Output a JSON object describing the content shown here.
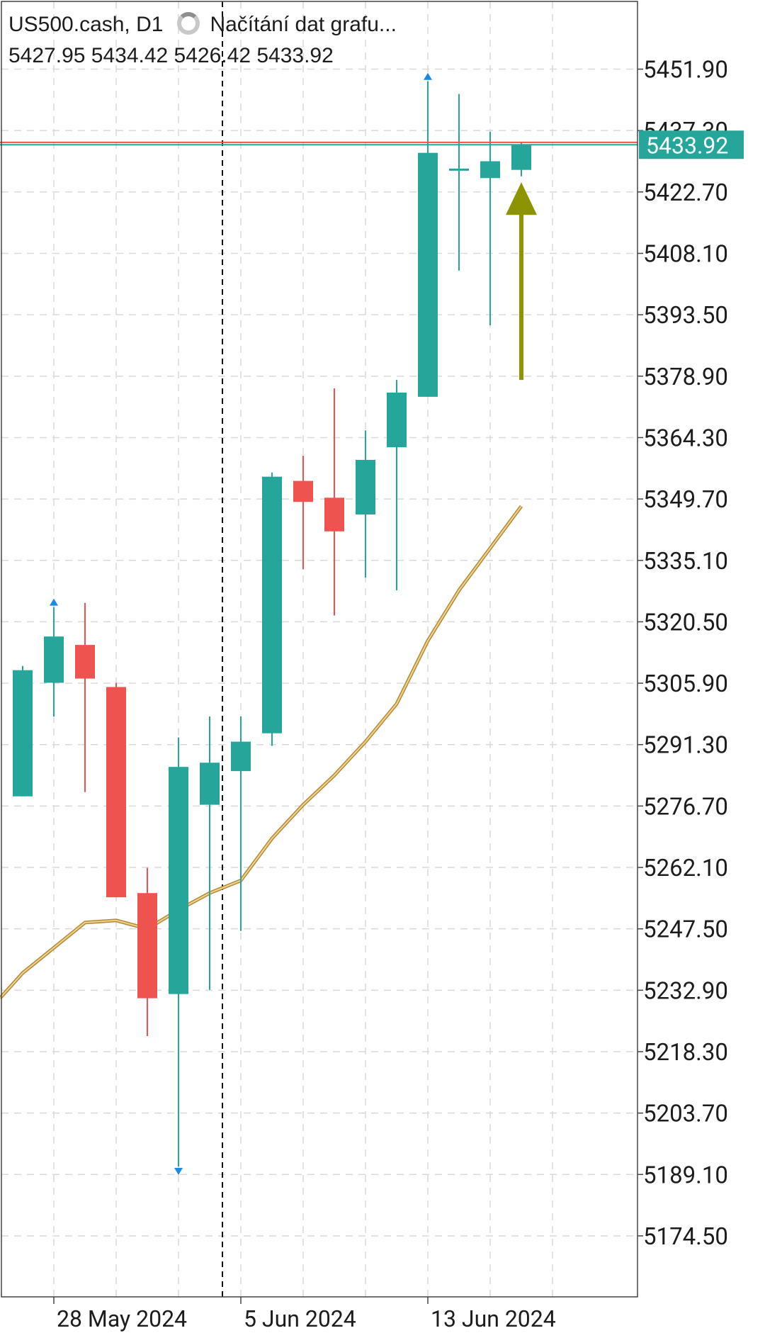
{
  "header": {
    "symbol": "US500.cash, D1",
    "loading_text": "Načítání dat grafu...",
    "ohlc": "5427.95 5434.42 5426.42 5433.92"
  },
  "current_price": "5433.92",
  "colors": {
    "bull": "#26a69a",
    "bear": "#ef5350",
    "ma": "#d4a84b",
    "arrow": "#8c9400",
    "bid_line": "#ef5350",
    "ask_line": "#26a69a",
    "grid": "#d9d9d9",
    "marker": "#1e88e5"
  },
  "chart_data": {
    "type": "candlestick",
    "symbol": "US500.cash",
    "timeframe": "D1",
    "y_axis": {
      "ticks": [
        "5451.90",
        "5437.30",
        "5422.70",
        "5408.10",
        "5393.50",
        "5378.90",
        "5364.30",
        "5349.70",
        "5335.10",
        "5320.50",
        "5305.90",
        "5291.30",
        "5276.70",
        "5262.10",
        "5247.50",
        "5232.90",
        "5218.30",
        "5203.70",
        "5189.10",
        "5174.50"
      ],
      "range": [
        5160,
        5468
      ]
    },
    "x_axis": {
      "labels": [
        {
          "text": "28 May 2024",
          "index": 1
        },
        {
          "text": "5 Jun 2024",
          "index": 7
        },
        {
          "text": "13 Jun 2024",
          "index": 13
        }
      ],
      "category_count": 18
    },
    "candles": [
      {
        "i": 0,
        "open": 5279,
        "high": 5310,
        "low": 5279,
        "close": 5309
      },
      {
        "i": 1,
        "open": 5306,
        "high": 5324,
        "low": 5298,
        "close": 5317
      },
      {
        "i": 2,
        "open": 5315,
        "high": 5325,
        "low": 5280,
        "close": 5307
      },
      {
        "i": 3,
        "open": 5305,
        "high": 5306,
        "low": 5255,
        "close": 5255
      },
      {
        "i": 4,
        "open": 5256,
        "high": 5262,
        "low": 5222,
        "close": 5231
      },
      {
        "i": 5,
        "open": 5232,
        "high": 5293,
        "low": 5191,
        "close": 5286
      },
      {
        "i": 6,
        "open": 5277,
        "high": 5298,
        "low": 5233,
        "close": 5287
      },
      {
        "i": 7,
        "open": 5285,
        "high": 5298,
        "low": 5247,
        "close": 5292
      },
      {
        "i": 8,
        "open": 5294,
        "high": 5356,
        "low": 5291,
        "close": 5355
      },
      {
        "i": 9,
        "open": 5354,
        "high": 5360,
        "low": 5333,
        "close": 5349
      },
      {
        "i": 10,
        "open": 5350,
        "high": 5376,
        "low": 5322,
        "close": 5342
      },
      {
        "i": 11,
        "open": 5346,
        "high": 5366,
        "low": 5331,
        "close": 5359
      },
      {
        "i": 12,
        "open": 5362,
        "high": 5378,
        "low": 5328,
        "close": 5375
      },
      {
        "i": 13,
        "open": 5374,
        "high": 5449,
        "low": 5374,
        "close": 5432
      },
      {
        "i": 14,
        "open": 5428,
        "high": 5446,
        "low": 5404,
        "close": 5428
      },
      {
        "i": 15,
        "open": 5426,
        "high": 5437,
        "low": 5391,
        "close": 5430
      },
      {
        "i": 16,
        "open": 5427.95,
        "high": 5434.42,
        "low": 5426.42,
        "close": 5433.92
      }
    ],
    "moving_average": [
      5237,
      5243,
      5249,
      5249.5,
      5247.5,
      5252,
      5256,
      5259,
      5269,
      5277,
      5284,
      5292,
      5301,
      5316,
      5328,
      5338,
      5348
    ],
    "markers": [
      {
        "type": "high-arrow",
        "index": 1,
        "price": 5324
      },
      {
        "type": "low-arrow",
        "index": 5,
        "price": 5191
      },
      {
        "type": "high-arrow",
        "index": 13,
        "price": 5449
      }
    ],
    "vertical_marker_index": 6,
    "buy_signal": {
      "index": 16,
      "from": 5378,
      "to": 5425
    },
    "bid": 5433.92,
    "ask": 5434.5
  }
}
